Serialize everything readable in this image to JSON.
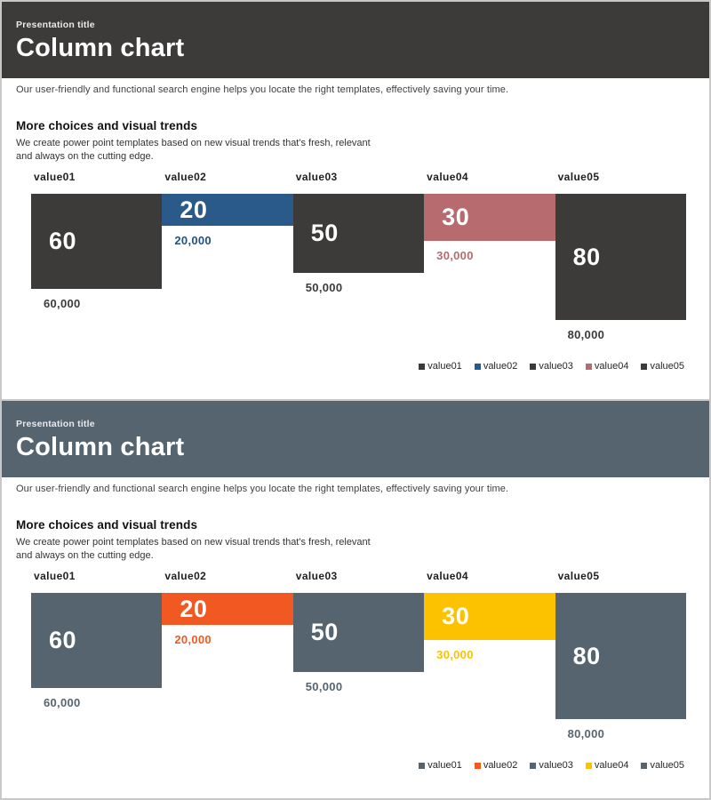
{
  "slides": [
    {
      "theme": "dark",
      "header": {
        "pretitle": "Presentation title",
        "title": "Column chart",
        "bg": "#3d3a3a"
      },
      "subtitle": "Our user-friendly and functional search engine helps you locate the right templates, effectively saving your time.",
      "section": {
        "heading": "More choices and visual trends",
        "body1": "We create power point templates based on new visual trends that's fresh, relevant",
        "body2": "and always on the cutting edge."
      },
      "chart": {
        "columns": [
          {
            "label": "value01",
            "value": 60,
            "display": "60",
            "sub": "60,000",
            "color": "#3d3a3a",
            "sub_color": "#3d3a3a"
          },
          {
            "label": "value02",
            "value": 20,
            "display": "20",
            "sub": "20,000",
            "color": "#2a5a8a",
            "sub_color": "#24527f"
          },
          {
            "label": "value03",
            "value": 50,
            "display": "50",
            "sub": "50,000",
            "color": "#3d3a3a",
            "sub_color": "#3d3a3a"
          },
          {
            "label": "value04",
            "value": 30,
            "display": "30",
            "sub": "30,000",
            "color": "#b76b6f",
            "sub_color": "#b76b6f"
          },
          {
            "label": "value05",
            "value": 80,
            "display": "80",
            "sub": "80,000",
            "color": "#3d3a3a",
            "sub_color": "#3d3a3a"
          }
        ],
        "legend": [
          {
            "label": "value01",
            "color": "#3d3a3a"
          },
          {
            "label": "value02",
            "color": "#2a5a8a"
          },
          {
            "label": "value03",
            "color": "#3d3a3a"
          },
          {
            "label": "value04",
            "color": "#b76b6f"
          },
          {
            "label": "value05",
            "color": "#3d3a3a"
          }
        ]
      }
    },
    {
      "theme": "slate",
      "header": {
        "pretitle": "Presentation title",
        "title": "Column chart",
        "bg": "#566470"
      },
      "subtitle": "Our user-friendly and functional search engine helps you locate the right templates, effectively saving your time.",
      "section": {
        "heading": "More choices and visual trends",
        "body1": "We create power point templates based on new visual trends that's fresh, relevant",
        "body2": "and always on the cutting edge."
      },
      "chart": {
        "columns": [
          {
            "label": "value01",
            "value": 60,
            "display": "60",
            "sub": "60,000",
            "color": "#566470",
            "sub_color": "#566470"
          },
          {
            "label": "value02",
            "value": 20,
            "display": "20",
            "sub": "20,000",
            "color": "#f25822",
            "sub_color": "#f25822"
          },
          {
            "label": "value03",
            "value": 50,
            "display": "50",
            "sub": "50,000",
            "color": "#566470",
            "sub_color": "#566470"
          },
          {
            "label": "value04",
            "value": 30,
            "display": "30",
            "sub": "30,000",
            "color": "#fcc200",
            "sub_color": "#fcc200"
          },
          {
            "label": "value05",
            "value": 80,
            "display": "80",
            "sub": "80,000",
            "color": "#566470",
            "sub_color": "#566470"
          }
        ],
        "legend": [
          {
            "label": "value01",
            "color": "#566470"
          },
          {
            "label": "value02",
            "color": "#f25822"
          },
          {
            "label": "value03",
            "color": "#566470"
          },
          {
            "label": "value04",
            "color": "#fcc200"
          },
          {
            "label": "value05",
            "color": "#566470"
          }
        ]
      }
    }
  ],
  "chart_data": [
    {
      "type": "bar",
      "title": "Column chart (dark theme slide)",
      "categories": [
        "value01",
        "value02",
        "value03",
        "value04",
        "value05"
      ],
      "values": [
        60,
        20,
        50,
        30,
        80
      ],
      "data_labels": [
        "60,000",
        "20,000",
        "50,000",
        "30,000",
        "80,000"
      ],
      "bar_colors": [
        "#3d3a3a",
        "#2a5a8a",
        "#3d3a3a",
        "#b76b6f",
        "#3d3a3a"
      ],
      "legend_entries": [
        "value01",
        "value02",
        "value03",
        "value04",
        "value05"
      ],
      "legend_position": "bottom-right",
      "orientation": "columns hang downward from a common top baseline",
      "grid": false,
      "axes_shown": false
    },
    {
      "type": "bar",
      "title": "Column chart (slate/orange/yellow theme slide)",
      "categories": [
        "value01",
        "value02",
        "value03",
        "value04",
        "value05"
      ],
      "values": [
        60,
        20,
        50,
        30,
        80
      ],
      "data_labels": [
        "60,000",
        "20,000",
        "50,000",
        "30,000",
        "80,000"
      ],
      "bar_colors": [
        "#566470",
        "#f25822",
        "#566470",
        "#fcc200",
        "#566470"
      ],
      "legend_entries": [
        "value01",
        "value02",
        "value03",
        "value04",
        "value05"
      ],
      "legend_position": "bottom-right",
      "orientation": "columns hang downward from a common top baseline",
      "grid": false,
      "axes_shown": false
    }
  ]
}
